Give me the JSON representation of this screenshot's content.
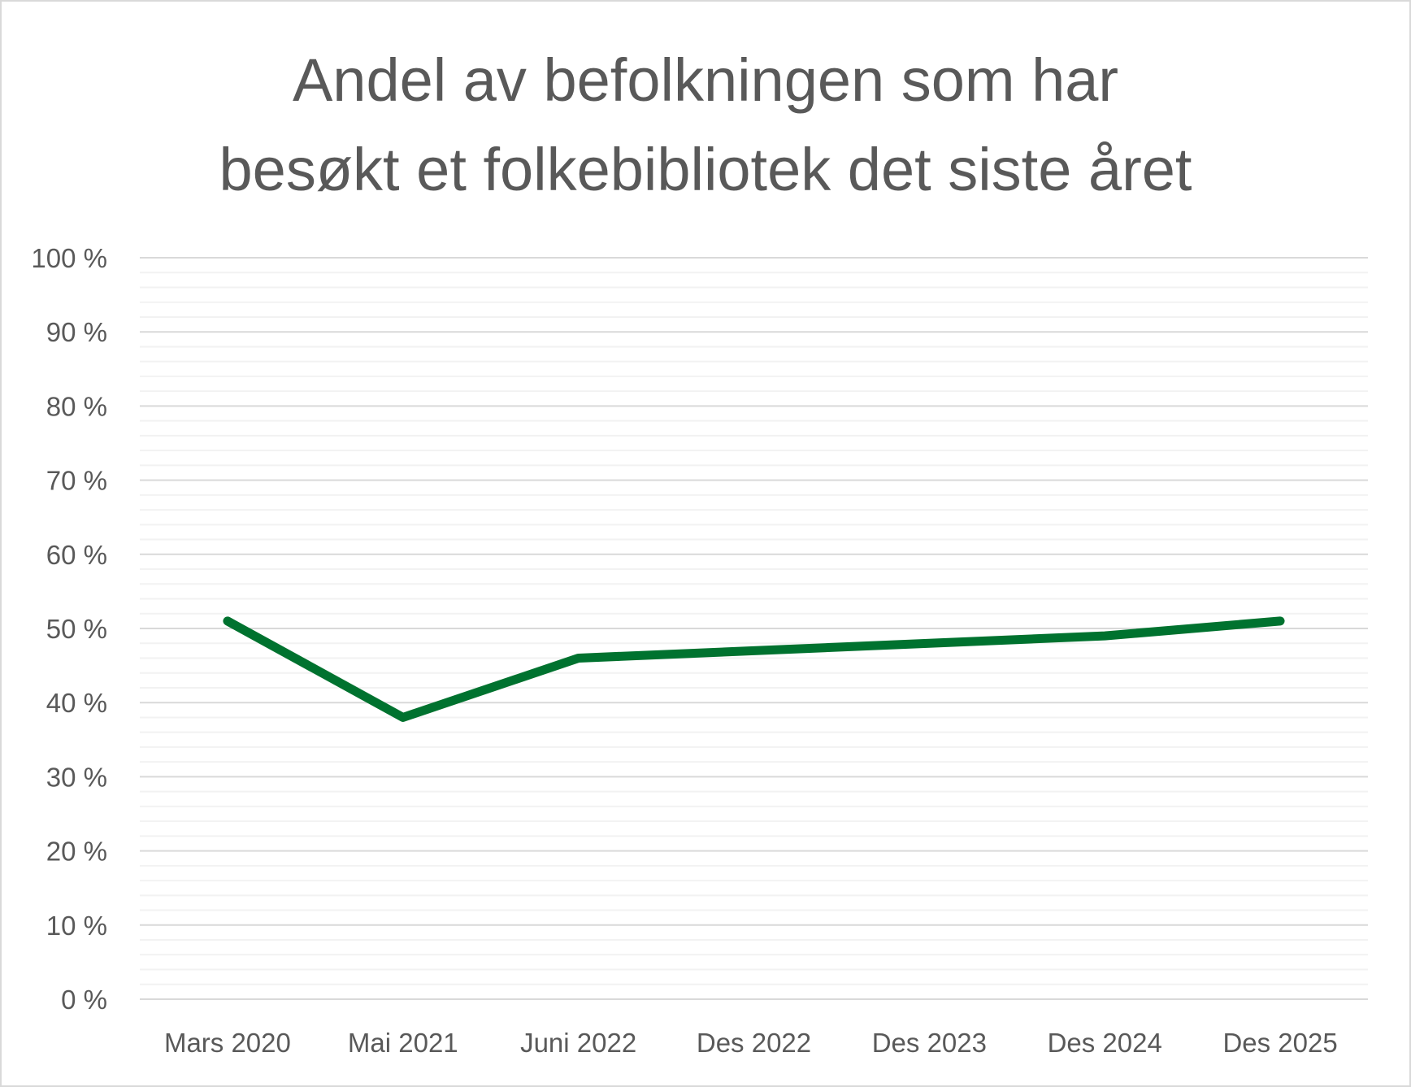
{
  "chart_data": {
    "type": "line",
    "title": [
      "Andel av befolkningen som har",
      "besøkt et folkebibliotek det siste året"
    ],
    "xlabel": "",
    "ylabel": "",
    "categories": [
      "Mars 2020",
      "Mai 2021",
      "Juni 2022",
      "Des 2022",
      "Des 2023",
      "Des 2024",
      "Des 2025"
    ],
    "series": [
      {
        "values": [
          51,
          38,
          46,
          47,
          48,
          49,
          51
        ],
        "color": "#00722F"
      }
    ],
    "ylim": [
      0,
      100
    ],
    "yticks": [
      0,
      10,
      20,
      30,
      40,
      50,
      60,
      70,
      80,
      90,
      100
    ],
    "ytick_labels": [
      "0 %",
      "10 %",
      "20 %",
      "30 %",
      "40 %",
      "50 %",
      "60 %",
      "70 %",
      "80 %",
      "90 %",
      "100 %"
    ],
    "minor_grid_step": 2,
    "grid": true,
    "legend": "none"
  }
}
